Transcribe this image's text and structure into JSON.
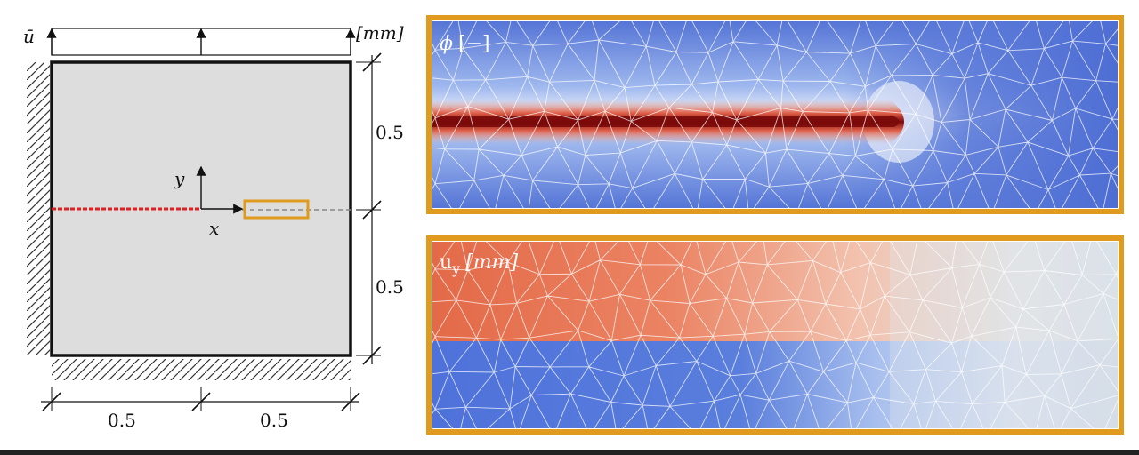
{
  "schematic": {
    "load_label": "ū",
    "unit_label": "[mm]",
    "dim_right_top": "0.5",
    "dim_right_bottom": "0.5",
    "dim_bottom_left": "0.5",
    "dim_bottom_right": "0.5",
    "axis_x_label": "x",
    "axis_y_label": "y"
  },
  "panels": {
    "phase_field": {
      "label_symbol": "ϕ",
      "label_unit": "[−]"
    },
    "displacement": {
      "label_symbol": "u",
      "label_sub": "y",
      "label_unit": "[mm]"
    }
  },
  "colors": {
    "frame": "#E09A1E",
    "crack": "#E02020",
    "plate": "#DDDDDD",
    "field_blue": "#4A6FD8",
    "field_red": "#E06A4A",
    "crack_core": "#7A0A0A"
  }
}
